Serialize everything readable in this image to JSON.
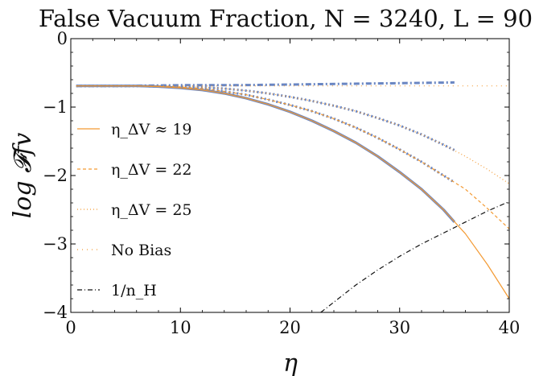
{
  "chart_data": {
    "type": "line",
    "title": "False Vacuum Fraction, N = 3240, L = 90",
    "xlabel": "η",
    "ylabel": "log 𝓕fv",
    "xlim": [
      0,
      40
    ],
    "ylim": [
      -4,
      0
    ],
    "x_ticks": [
      "0",
      "10",
      "20",
      "30",
      "40"
    ],
    "y_ticks": [
      "0",
      "−1",
      "−2",
      "−3",
      "−4"
    ],
    "legend_position": "left",
    "series": [
      {
        "name": "η_ΔV ≈ 19",
        "style": "solid",
        "color": "#f39a33",
        "x": [
          0.5,
          3,
          6,
          8,
          10,
          12,
          14,
          16,
          18,
          20,
          22,
          24,
          26,
          28,
          30,
          32,
          34,
          36,
          38,
          40
        ],
        "y": [
          -0.69,
          -0.69,
          -0.69,
          -0.7,
          -0.72,
          -0.75,
          -0.8,
          -0.87,
          -0.96,
          -1.07,
          -1.2,
          -1.35,
          -1.52,
          -1.72,
          -1.95,
          -2.2,
          -2.5,
          -2.85,
          -3.3,
          -3.8
        ]
      },
      {
        "name": "η_ΔV = 22",
        "style": "dashed",
        "color": "#f39a33",
        "x": [
          0.5,
          3,
          6,
          8,
          10,
          12,
          14,
          16,
          18,
          20,
          22,
          24,
          26,
          28,
          30,
          32,
          34,
          36,
          38,
          40
        ],
        "y": [
          -0.69,
          -0.69,
          -0.69,
          -0.7,
          -0.71,
          -0.73,
          -0.77,
          -0.82,
          -0.89,
          -0.97,
          -1.06,
          -1.17,
          -1.3,
          -1.45,
          -1.62,
          -1.8,
          -2.0,
          -2.2,
          -2.48,
          -2.78
        ]
      },
      {
        "name": "η_ΔV = 25",
        "style": "dotted",
        "color": "#f39a33",
        "x": [
          0.5,
          3,
          6,
          8,
          10,
          12,
          14,
          16,
          18,
          20,
          22,
          24,
          26,
          28,
          30,
          32,
          34,
          36,
          38,
          40
        ],
        "y": [
          -0.69,
          -0.69,
          -0.69,
          -0.69,
          -0.7,
          -0.71,
          -0.73,
          -0.76,
          -0.8,
          -0.85,
          -0.91,
          -0.98,
          -1.06,
          -1.16,
          -1.27,
          -1.4,
          -1.55,
          -1.72,
          -1.91,
          -2.12
        ]
      },
      {
        "name": "No Bias",
        "style": "sparse-dotted",
        "color": "#f39a33",
        "x": [
          0.5,
          10,
          20,
          30,
          40
        ],
        "y": [
          -0.69,
          -0.69,
          -0.69,
          -0.69,
          -0.69
        ]
      },
      {
        "name": "1/n_H",
        "style": "dash-dot",
        "color": "#111111",
        "x": [
          22.8,
          24,
          26,
          28,
          30,
          32,
          34,
          36,
          38,
          40
        ],
        "y": [
          -4.0,
          -3.85,
          -3.6,
          -3.38,
          -3.18,
          -3.0,
          -2.84,
          -2.68,
          -2.52,
          -2.38
        ]
      },
      {
        "style": "solid-thick",
        "color": "#6a86c2",
        "x": [
          0.5,
          3,
          6,
          8,
          10,
          12,
          14,
          16,
          18,
          20,
          22,
          24,
          26,
          28,
          30,
          32,
          34,
          35
        ],
        "y": [
          -0.69,
          -0.69,
          -0.69,
          -0.7,
          -0.72,
          -0.75,
          -0.8,
          -0.87,
          -0.96,
          -1.07,
          -1.2,
          -1.35,
          -1.52,
          -1.72,
          -1.95,
          -2.2,
          -2.5,
          -2.68
        ]
      },
      {
        "style": "dotted-thick",
        "color": "#6a86c2",
        "x": [
          0.5,
          3,
          6,
          8,
          10,
          12,
          14,
          16,
          18,
          20,
          22,
          24,
          26,
          28,
          30,
          32,
          34,
          35
        ],
        "y": [
          -0.69,
          -0.69,
          -0.69,
          -0.7,
          -0.71,
          -0.73,
          -0.77,
          -0.82,
          -0.89,
          -0.97,
          -1.06,
          -1.17,
          -1.3,
          -1.45,
          -1.62,
          -1.8,
          -2.0,
          -2.1
        ]
      },
      {
        "style": "dotted-thick",
        "color": "#6a86c2",
        "x": [
          0.5,
          3,
          6,
          8,
          10,
          12,
          14,
          16,
          18,
          20,
          22,
          24,
          26,
          28,
          30,
          32,
          34,
          35
        ],
        "y": [
          -0.69,
          -0.69,
          -0.69,
          -0.69,
          -0.7,
          -0.71,
          -0.73,
          -0.76,
          -0.8,
          -0.85,
          -0.91,
          -0.98,
          -1.06,
          -1.16,
          -1.27,
          -1.4,
          -1.55,
          -1.63
        ]
      },
      {
        "style": "dash-dot-thick",
        "color": "#6a86c2",
        "x": [
          0.5,
          5,
          10,
          15,
          20,
          25,
          30,
          35
        ],
        "y": [
          -0.69,
          -0.69,
          -0.68,
          -0.68,
          -0.67,
          -0.66,
          -0.65,
          -0.64
        ]
      }
    ]
  }
}
